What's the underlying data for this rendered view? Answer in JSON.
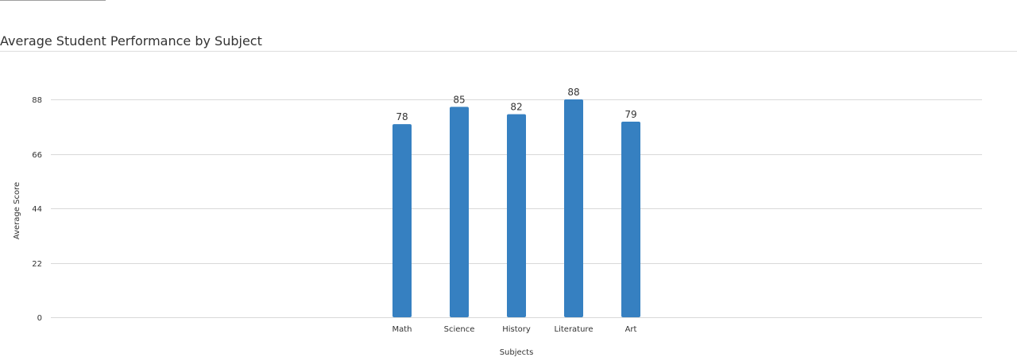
{
  "chart_data": {
    "type": "bar",
    "title": "Average Student Performance by Subject",
    "xlabel": "Subjects",
    "ylabel": "Average Score",
    "categories": [
      "Math",
      "Science",
      "History",
      "Literature",
      "Art"
    ],
    "values": [
      78,
      85,
      82,
      88,
      79
    ],
    "ylim": [
      0,
      88
    ],
    "yticks": [
      0,
      22,
      44,
      66,
      88
    ],
    "grid": true,
    "legend": "none",
    "bar_color": "#3680c1"
  }
}
